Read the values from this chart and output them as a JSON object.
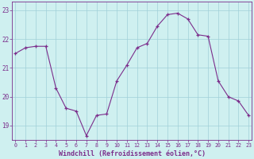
{
  "hours": [
    0,
    1,
    2,
    3,
    4,
    5,
    6,
    7,
    8,
    9,
    10,
    11,
    12,
    13,
    14,
    15,
    16,
    17,
    18,
    19,
    20,
    21,
    22,
    23
  ],
  "values": [
    21.5,
    21.7,
    21.75,
    21.75,
    20.3,
    19.6,
    19.5,
    18.65,
    19.35,
    19.4,
    20.55,
    21.1,
    21.7,
    21.85,
    22.45,
    22.85,
    22.9,
    22.7,
    22.15,
    22.1,
    20.55,
    20.0,
    19.85,
    19.35
  ],
  "line_color": "#7b2d8b",
  "marker_color": "#7b2d8b",
  "bg_color": "#cff0f0",
  "grid_color": "#a0d0d8",
  "axis_color": "#7b2d8b",
  "tick_color": "#7b2d8b",
  "xlabel": "Windchill (Refroidissement éolien,°C)",
  "ylim": [
    18.5,
    23.3
  ],
  "yticks": [
    19,
    20,
    21,
    22,
    23
  ],
  "xlabel_fontsize": 6.0,
  "xtick_fontsize": 4.8,
  "ytick_fontsize": 5.5
}
